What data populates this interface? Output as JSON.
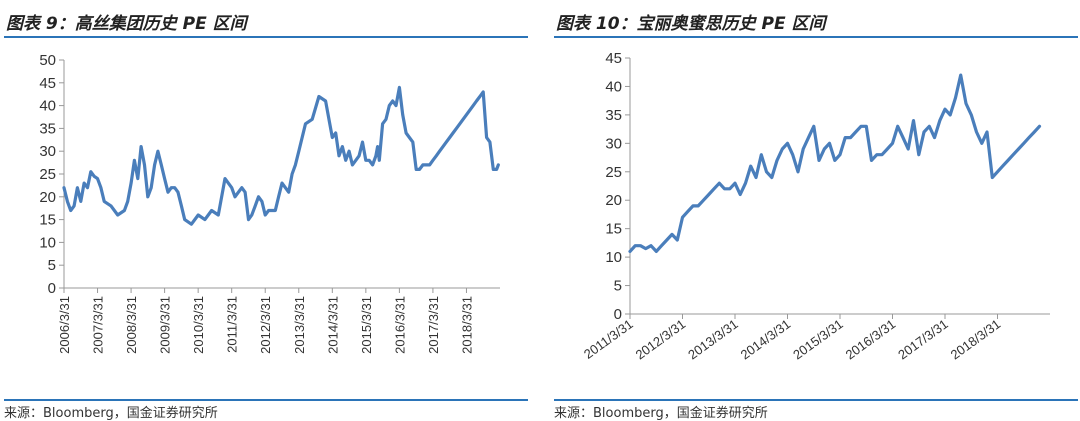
{
  "charts": {
    "left": {
      "title": "图表 9：高丝集团历史 PE 区间",
      "source": "来源：Bloomberg，国金证券研究所"
    },
    "right": {
      "title": "图表 10：宝丽奥蜜思历史 PE 区间",
      "source": "来源：Bloomberg，国金证券研究所"
    }
  },
  "chart_data": [
    {
      "type": "line",
      "title": "图表 9：高丝集团历史 PE 区间",
      "ylim": [
        0,
        50
      ],
      "yticks": [
        0,
        5,
        10,
        15,
        20,
        25,
        30,
        35,
        40,
        45,
        50
      ],
      "xlim": [
        "2006/3/31",
        "2019/3/31"
      ],
      "xticks": [
        "2006/3/31",
        "2007/3/31",
        "2008/3/31",
        "2009/3/31",
        "2010/3/31",
        "2011/3/31",
        "2012/3/31",
        "2013/3/31",
        "2014/3/31",
        "2015/3/31",
        "2016/3/31",
        "2017/3/31",
        "2018/3/31"
      ],
      "grid": false,
      "color": "#4a7ebb",
      "x": [
        2006.0,
        2006.1,
        2006.2,
        2006.3,
        2006.4,
        2006.5,
        2006.6,
        2006.7,
        2006.8,
        2006.9,
        2007.0,
        2007.1,
        2007.2,
        2007.4,
        2007.6,
        2007.8,
        2007.9,
        2008.0,
        2008.1,
        2008.2,
        2008.3,
        2008.4,
        2008.5,
        2008.6,
        2008.7,
        2008.8,
        2008.9,
        2009.0,
        2009.1,
        2009.2,
        2009.3,
        2009.4,
        2009.5,
        2009.6,
        2009.8,
        2010.0,
        2010.2,
        2010.4,
        2010.6,
        2010.8,
        2011.0,
        2011.1,
        2011.2,
        2011.3,
        2011.4,
        2011.5,
        2011.6,
        2011.7,
        2011.8,
        2011.9,
        2012.0,
        2012.1,
        2012.2,
        2012.3,
        2012.4,
        2012.5,
        2012.6,
        2012.7,
        2012.8,
        2012.9,
        2013.0,
        2013.2,
        2013.4,
        2013.6,
        2013.8,
        2014.0,
        2014.1,
        2014.2,
        2014.3,
        2014.4,
        2014.5,
        2014.6,
        2014.7,
        2014.8,
        2014.9,
        2015.0,
        2015.1,
        2015.2,
        2015.3,
        2015.35,
        2015.4,
        2015.5,
        2015.6,
        2015.7,
        2015.8,
        2015.9,
        2016.0,
        2016.1,
        2016.2,
        2016.3,
        2016.4,
        2016.5,
        2016.6,
        2016.7,
        2016.8,
        2016.9,
        2017.0,
        2017.1,
        2017.2,
        2017.3,
        2017.4,
        2017.5,
        2017.6,
        2017.7,
        2017.8,
        2017.9,
        2018.0,
        2018.1,
        2018.2,
        2018.3,
        2018.4,
        2018.5,
        2018.6,
        2018.7,
        2018.8,
        2018.85,
        2018.9,
        2018.95
      ],
      "y": [
        22,
        19,
        17,
        18,
        22,
        19,
        23,
        22,
        25.5,
        24.5,
        24,
        22,
        19,
        18,
        16,
        17,
        19,
        23,
        28,
        24,
        31,
        27,
        20,
        22,
        27,
        30,
        27,
        24,
        21,
        22,
        22,
        21,
        18,
        15,
        14,
        16,
        15,
        17,
        16,
        24,
        22,
        20,
        21,
        22,
        21,
        15,
        16,
        18,
        20,
        19,
        16,
        17,
        17,
        17,
        20,
        23,
        22,
        21,
        25,
        27,
        30,
        36,
        37,
        42,
        41,
        33,
        34,
        29,
        31,
        28,
        30,
        27,
        28,
        29,
        32,
        28,
        28,
        27,
        29,
        31,
        28,
        36,
        37,
        40,
        41,
        40,
        44,
        38,
        34,
        33,
        32,
        26,
        26,
        27,
        27,
        27,
        28,
        29,
        30,
        31,
        32,
        33,
        34,
        35,
        36,
        37,
        38,
        39,
        40,
        41,
        42,
        43,
        33,
        32,
        26,
        26,
        26,
        27
      ]
    },
    {
      "type": "line",
      "title": "图表 10：宝丽奥蜜思历史 PE 区间",
      "ylim": [
        0,
        45
      ],
      "yticks": [
        0,
        5,
        10,
        15,
        20,
        25,
        30,
        35,
        40,
        45
      ],
      "xlim": [
        "2011/3/31",
        "2019/1/31"
      ],
      "xticks": [
        "2011/3/31",
        "2012/3/31",
        "2013/3/31",
        "2014/3/31",
        "2015/3/31",
        "2016/3/31",
        "2017/3/31",
        "2018/3/31"
      ],
      "grid": false,
      "color": "#4a7ebb",
      "x": [
        2011.0,
        2011.1,
        2011.2,
        2011.3,
        2011.4,
        2011.5,
        2011.6,
        2011.7,
        2011.8,
        2011.9,
        2012.0,
        2012.1,
        2012.2,
        2012.3,
        2012.4,
        2012.5,
        2012.6,
        2012.7,
        2012.8,
        2012.9,
        2013.0,
        2013.1,
        2013.2,
        2013.3,
        2013.4,
        2013.5,
        2013.6,
        2013.7,
        2013.8,
        2013.9,
        2014.0,
        2014.1,
        2014.2,
        2014.3,
        2014.4,
        2014.5,
        2014.6,
        2014.7,
        2014.8,
        2014.9,
        2015.0,
        2015.1,
        2015.2,
        2015.3,
        2015.4,
        2015.5,
        2015.6,
        2015.7,
        2015.8,
        2015.9,
        2016.0,
        2016.1,
        2016.2,
        2016.3,
        2016.4,
        2016.5,
        2016.6,
        2016.7,
        2016.8,
        2016.9,
        2017.0,
        2017.1,
        2017.2,
        2017.3,
        2017.4,
        2017.5,
        2017.6,
        2017.7,
        2017.8,
        2017.9,
        2018.0,
        2018.1,
        2018.2,
        2018.3,
        2018.4,
        2018.5,
        2018.6,
        2018.7,
        2018.8
      ],
      "y": [
        11,
        12,
        12,
        11.5,
        12,
        11,
        12,
        13,
        14,
        13,
        17,
        18,
        19,
        19,
        20,
        21,
        22,
        23,
        22,
        22,
        23,
        21,
        23,
        26,
        24,
        28,
        25,
        24,
        27,
        29,
        30,
        28,
        25,
        29,
        31,
        33,
        27,
        29,
        30,
        27,
        28,
        31,
        31,
        32,
        33,
        33,
        27,
        28,
        28,
        29,
        30,
        33,
        31,
        29,
        34,
        28,
        32,
        33,
        31,
        34,
        36,
        35,
        38,
        42,
        37,
        35,
        32,
        30,
        32,
        24,
        25,
        26,
        27,
        28,
        29,
        30,
        31,
        32,
        33
      ]
    }
  ]
}
